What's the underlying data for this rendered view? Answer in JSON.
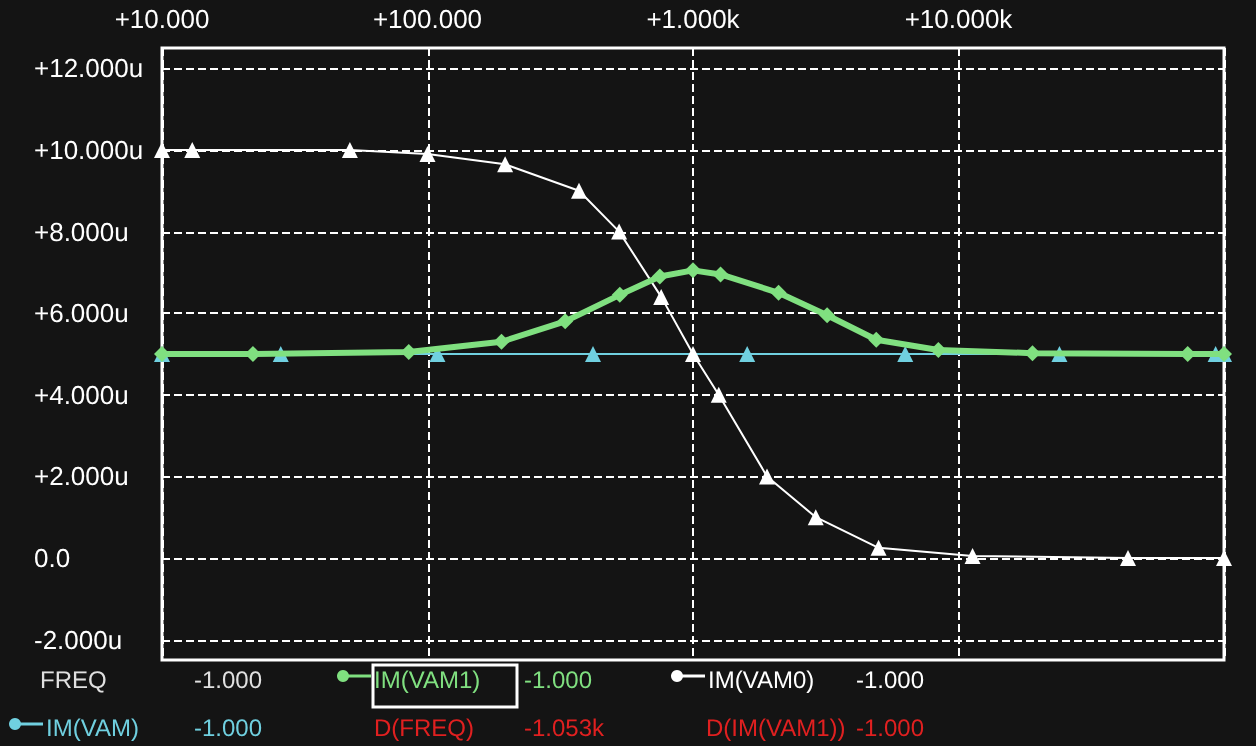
{
  "chart_data": {
    "type": "line",
    "xlim": [
      10,
      100000
    ],
    "log": "x",
    "xticks": [
      {
        "value": 10,
        "label": "+10.000"
      },
      {
        "value": 100,
        "label": "+100.000"
      },
      {
        "value": 1000,
        "label": "+1.000k"
      },
      {
        "value": 10000,
        "label": "+10.000k"
      }
    ],
    "ylim": [
      -2.5,
      12.5
    ],
    "yticks": [
      {
        "value": -2,
        "label": "-2.000u"
      },
      {
        "value": 0,
        "label": "0.0"
      },
      {
        "value": 2,
        "label": "+2.000u"
      },
      {
        "value": 4,
        "label": "+4.000u"
      },
      {
        "value": 6,
        "label": "+6.000u"
      },
      {
        "value": 8,
        "label": "+8.000u"
      },
      {
        "value": 10,
        "label": "+10.000u"
      },
      {
        "value": 12,
        "label": "+12.000u"
      }
    ],
    "grid": true,
    "legend": "bottom",
    "line_style": "solid",
    "series": [
      {
        "name": "IM(VAM1)",
        "color": "#80e080",
        "marker": "diamond",
        "x": [
          10,
          22,
          85,
          190,
          330,
          530,
          750,
          1000,
          1270,
          2100,
          3200,
          4900,
          8400,
          19000,
          73000,
          100000
        ],
        "values": [
          5.0,
          5.0,
          5.05,
          5.3,
          5.8,
          6.45,
          6.9,
          7.05,
          6.95,
          6.5,
          5.95,
          5.35,
          5.1,
          5.02,
          5.0,
          5.0
        ]
      },
      {
        "name": "IM(VAM0)",
        "color": "#ffffff",
        "marker": "triangle",
        "x": [
          10,
          13,
          51,
          100,
          196,
          372,
          527,
          759,
          1000,
          1250,
          1900,
          2900,
          5000,
          11300,
          43500,
          100000
        ],
        "values": [
          10.0,
          10.0,
          10.0,
          9.9,
          9.65,
          9.0,
          8.0,
          6.4,
          5.0,
          4.0,
          2.0,
          1.0,
          0.25,
          0.05,
          0.0,
          0.0
        ]
      },
      {
        "name": "IM(VAM)",
        "color": "#70d0e0",
        "marker": "triangle",
        "x": [
          10,
          28,
          109,
          420,
          1600,
          6300,
          24000,
          93000,
          100000
        ],
        "values": [
          5.0,
          5.0,
          5.0,
          5.0,
          5.0,
          5.0,
          5.0,
          5.0,
          5.0
        ]
      }
    ],
    "annotations": [
      "FREQ",
      "-1.000",
      "-1.000",
      "-1.000",
      "-1.000",
      "D(FREQ)",
      "-1.053k",
      "D(IM(VAM1))",
      "-1.000"
    ]
  }
}
